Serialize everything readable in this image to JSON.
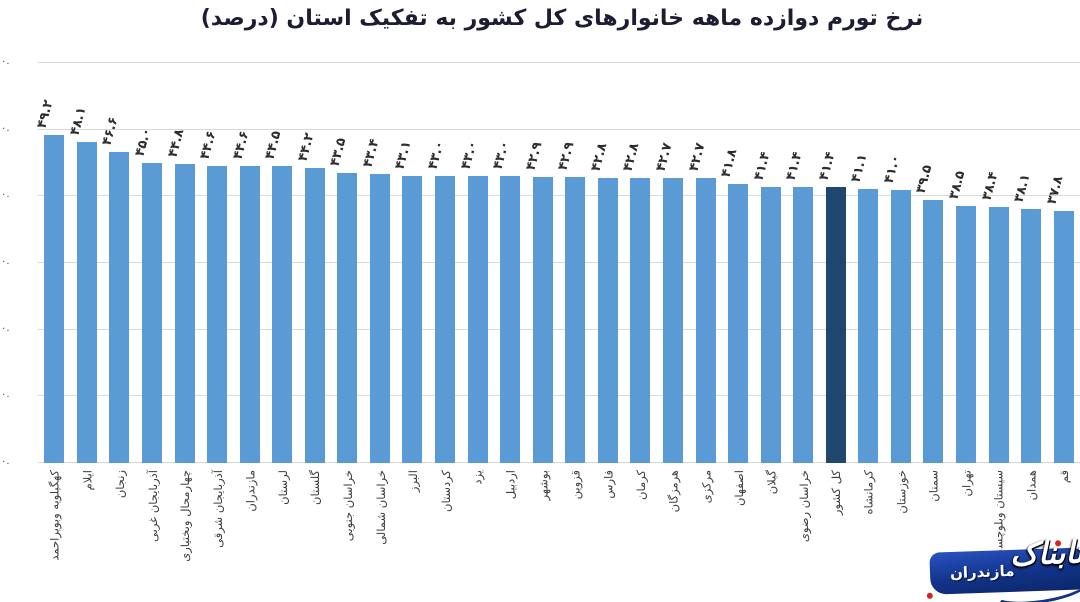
{
  "chart_data": {
    "type": "bar",
    "title": "نرخ تورم دوازده ماهه خانوارهای کل کشور به تفکیک استان (درصد)",
    "xlabel": "",
    "ylabel": "",
    "legend": "none",
    "grid": "horizontal",
    "ylim": [
      0,
      60
    ],
    "gridline_step": 10,
    "y_tick_fragment": "۰.",
    "categories": [
      "کهگیلویه وبویراحمد",
      "ایلام",
      "زنجان",
      "آذربایجان غربی",
      "چهارمحال وبختیاری",
      "آذربایجان شرقی",
      "مازندران",
      "لرستان",
      "گلستان",
      "خراسان جنوبی",
      "خراسان شمالی",
      "البرز",
      "کردستان",
      "یزد",
      "اردبیل",
      "بوشهر",
      "قزوین",
      "فارس",
      "کرمان",
      "هرمزگان",
      "مرکزی",
      "اصفهان",
      "گیلان",
      "خراسان رضوی",
      "کل کشور",
      "کرمانشاه",
      "خوزستان",
      "سمنان",
      "تهران",
      "سیستان وبلوچستان",
      "همدان",
      "قم"
    ],
    "values": [
      49.2,
      48.1,
      46.6,
      45.0,
      44.8,
      44.6,
      44.6,
      44.5,
      44.2,
      43.5,
      43.4,
      43.1,
      43.0,
      43.0,
      43.0,
      42.9,
      42.9,
      42.8,
      42.8,
      42.7,
      42.7,
      41.8,
      41.4,
      41.4,
      41.4,
      41.1,
      41.0,
      39.5,
      38.5,
      38.4,
      38.1,
      37.8
    ],
    "value_labels": [
      "۴۹.۲",
      "۴۸.۱",
      "۴۶.۶",
      "۴۵.۰",
      "۴۴.۸",
      "۴۴.۶",
      "۴۴.۶",
      "۴۴.۵",
      "۴۴.۲",
      "۴۳.۵",
      "۴۳.۴",
      "۴۳.۱",
      "۴۳.۰",
      "۴۳.۰",
      "۴۳.۰",
      "۴۲.۹",
      "۴۲.۹",
      "۴۲.۸",
      "۴۲.۸",
      "۴۲.۷",
      "۴۲.۷",
      "۴۱.۸",
      "۴۱.۴",
      "۴۱.۴",
      "۴۱.۴",
      "۴۱.۱",
      "۴۱.۰",
      "۳۹.۵",
      "۳۸.۵",
      "۳۸.۴",
      "۳۸.۱",
      "۳۷.۸"
    ],
    "highlight_category": "کل کشور",
    "highlight_index": 24,
    "colors": {
      "bar": "#5B9BD5",
      "highlight_bar": "#20476E",
      "gridline": "#D9D9D9",
      "title": "#1C1C33",
      "value_label": "#2D2D2D",
      "axis_label": "#3E3E3E"
    }
  },
  "watermark": {
    "title": "تابناک",
    "subtitle": "مازندران",
    "background": "#12338A",
    "accent": "#D6231F"
  }
}
